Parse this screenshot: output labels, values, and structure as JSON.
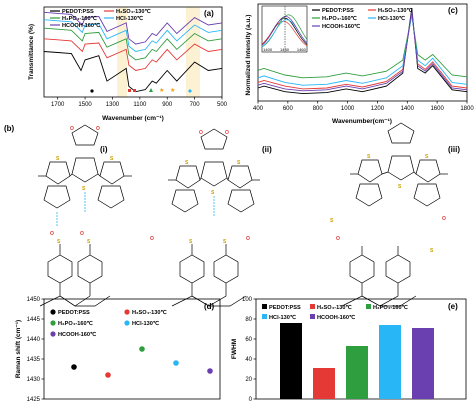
{
  "panel_labels": [
    "(a)",
    "(b)",
    "(c)",
    "(d)",
    "(e)"
  ],
  "scheme_labels": [
    "(i)",
    "(ii)",
    "(iii)"
  ],
  "legend": [
    "PEDOT:PSS",
    "H₂SO₄-130℃",
    "H₃PO₄-160℃",
    "HCl-130℃",
    "HCOOH-160℃"
  ],
  "chart_data": [
    {
      "type": "line",
      "panel": "(a)",
      "xlabel": "Wavenumber (cm⁻¹)",
      "ylabel": "Transmittance (%)",
      "xticks": [
        1700,
        1500,
        1300,
        1100,
        900,
        700,
        500
      ],
      "xlim": [
        1800,
        500
      ],
      "x_reversed": true,
      "colors": [
        "#000000",
        "#e53935",
        "#2e9e3e",
        "#29b6f6",
        "#6a3fb0"
      ],
      "series": [
        {
          "name": "PEDOT:PSS",
          "x": [
            1800,
            1700,
            1600,
            1530,
            1500,
            1400,
            1340,
            1200,
            1180,
            1130,
            1060,
            1010,
            980,
            900,
            830,
            700,
            600,
            500
          ],
          "y": [
            88,
            87,
            86,
            70,
            80,
            84,
            60,
            72,
            55,
            50,
            52,
            60,
            58,
            70,
            60,
            78,
            70,
            72
          ]
        },
        {
          "name": "H₂SO₄-130℃",
          "x": [
            1800,
            1700,
            1600,
            1520,
            1500,
            1400,
            1340,
            1200,
            1180,
            1130,
            1060,
            1010,
            980,
            900,
            830,
            700,
            600,
            500
          ],
          "y": [
            100,
            99,
            98,
            88,
            95,
            96,
            82,
            90,
            75,
            70,
            72,
            80,
            78,
            90,
            80,
            95,
            88,
            90
          ]
        },
        {
          "name": "H₃PO₄-160℃",
          "x": [
            1800,
            1700,
            1600,
            1520,
            1500,
            1400,
            1340,
            1200,
            1180,
            1130,
            1060,
            1010,
            980,
            900,
            830,
            700,
            600,
            500
          ],
          "y": [
            110,
            109,
            108,
            98,
            105,
            106,
            92,
            100,
            85,
            80,
            82,
            90,
            88,
            100,
            90,
            105,
            98,
            100
          ]
        },
        {
          "name": "HCl-130℃",
          "x": [
            1800,
            1700,
            1600,
            1520,
            1500,
            1400,
            1340,
            1200,
            1180,
            1130,
            1060,
            1010,
            980,
            900,
            830,
            700,
            600,
            500
          ],
          "y": [
            118,
            117,
            116,
            106,
            113,
            114,
            100,
            108,
            93,
            88,
            90,
            98,
            96,
            108,
            98,
            113,
            106,
            108
          ]
        },
        {
          "name": "HCOOH-160℃",
          "x": [
            1800,
            1700,
            1600,
            1520,
            1500,
            1400,
            1340,
            1200,
            1180,
            1130,
            1060,
            1010,
            980,
            900,
            830,
            700,
            600,
            500
          ],
          "y": [
            125,
            124,
            123,
            113,
            120,
            121,
            107,
            115,
            100,
            95,
            97,
            105,
            103,
            115,
            105,
            120,
            113,
            115
          ]
        }
      ]
    },
    {
      "type": "line",
      "panel": "(c)",
      "xlabel": "Wavenumber(cm⁻¹)",
      "ylabel": "Normalized Intensity (a.u.)",
      "xticks": [
        400,
        600,
        800,
        1000,
        1200,
        1400,
        1600,
        1800
      ],
      "xlim": [
        400,
        1800
      ],
      "inset_xticks": [
        1400,
        1430,
        1460
      ],
      "colors": [
        "#000000",
        "#e53935",
        "#2e9e3e",
        "#29b6f6",
        "#6a3fb0"
      ],
      "series": [
        {
          "name": "PEDOT:PSS",
          "x": [
            400,
            440,
            580,
            700,
            860,
            990,
            1100,
            1260,
            1370,
            1430,
            1470,
            1520,
            1570,
            1700,
            1800
          ],
          "y": [
            0.14,
            0.16,
            0.1,
            0.08,
            0.09,
            0.13,
            0.1,
            0.16,
            0.3,
            1.0,
            0.35,
            0.3,
            0.38,
            0.12,
            0.1
          ]
        },
        {
          "name": "H₂SO₄-130℃",
          "x": [
            400,
            440,
            580,
            700,
            860,
            990,
            1100,
            1260,
            1370,
            1430,
            1470,
            1520,
            1570,
            1700,
            1800
          ],
          "y": [
            0.2,
            0.22,
            0.16,
            0.13,
            0.14,
            0.18,
            0.15,
            0.21,
            0.34,
            0.95,
            0.4,
            0.34,
            0.42,
            0.16,
            0.14
          ]
        },
        {
          "name": "H₃PO₄-160℃",
          "x": [
            400,
            440,
            580,
            700,
            860,
            990,
            1100,
            1260,
            1370,
            1430,
            1470,
            1520,
            1570,
            1700,
            1800
          ],
          "y": [
            0.33,
            0.35,
            0.28,
            0.25,
            0.26,
            0.3,
            0.27,
            0.32,
            0.44,
            0.92,
            0.5,
            0.44,
            0.5,
            0.28,
            0.26
          ]
        },
        {
          "name": "HCl-130℃",
          "x": [
            400,
            440,
            580,
            700,
            860,
            990,
            1100,
            1260,
            1370,
            1430,
            1470,
            1520,
            1570,
            1700,
            1800
          ],
          "y": [
            0.25,
            0.27,
            0.2,
            0.17,
            0.18,
            0.22,
            0.19,
            0.25,
            0.38,
            0.93,
            0.44,
            0.38,
            0.46,
            0.2,
            0.18
          ]
        },
        {
          "name": "HCOOH-160℃",
          "x": [
            400,
            440,
            580,
            700,
            860,
            990,
            1100,
            1260,
            1370,
            1430,
            1470,
            1520,
            1570,
            1700,
            1800
          ],
          "y": [
            0.17,
            0.19,
            0.13,
            0.11,
            0.12,
            0.16,
            0.13,
            0.19,
            0.32,
            0.97,
            0.38,
            0.32,
            0.4,
            0.14,
            0.12
          ]
        }
      ]
    },
    {
      "type": "scatter",
      "panel": "(d)",
      "ylabel": "Raman shift (cm⁻¹)",
      "yticks": [
        1425,
        1430,
        1435,
        1440,
        1445,
        1450
      ],
      "ylim": [
        1425,
        1450
      ],
      "colors": [
        "#000000",
        "#e53935",
        "#2e9e3e",
        "#29b6f6",
        "#6a3fb0"
      ],
      "x": [
        1,
        2,
        3,
        4,
        5
      ],
      "series": [
        {
          "name": "PEDOT:PSS",
          "y": 1433
        },
        {
          "name": "H₂SO₄-130℃",
          "y": 1431
        },
        {
          "name": "H₃PO₄-160℃",
          "y": 1437.5
        },
        {
          "name": "HCl-130℃",
          "y": 1434
        },
        {
          "name": "HCOOH-160℃",
          "y": 1432
        }
      ]
    },
    {
      "type": "bar",
      "panel": "(e)",
      "ylabel": "FWHM",
      "yticks": [
        0,
        20,
        40,
        60,
        80,
        100
      ],
      "ylim": [
        0,
        100
      ],
      "colors": [
        "#000000",
        "#e53935",
        "#2e9e3e",
        "#29b6f6",
        "#6a3fb0"
      ],
      "categories": [
        "PEDOT:PSS",
        "H₂SO₄-130℃",
        "H₃PO₄-160℃",
        "HCl-130℃",
        "HCOOH-160℃"
      ],
      "values": [
        76,
        31,
        53,
        74,
        71
      ]
    }
  ]
}
